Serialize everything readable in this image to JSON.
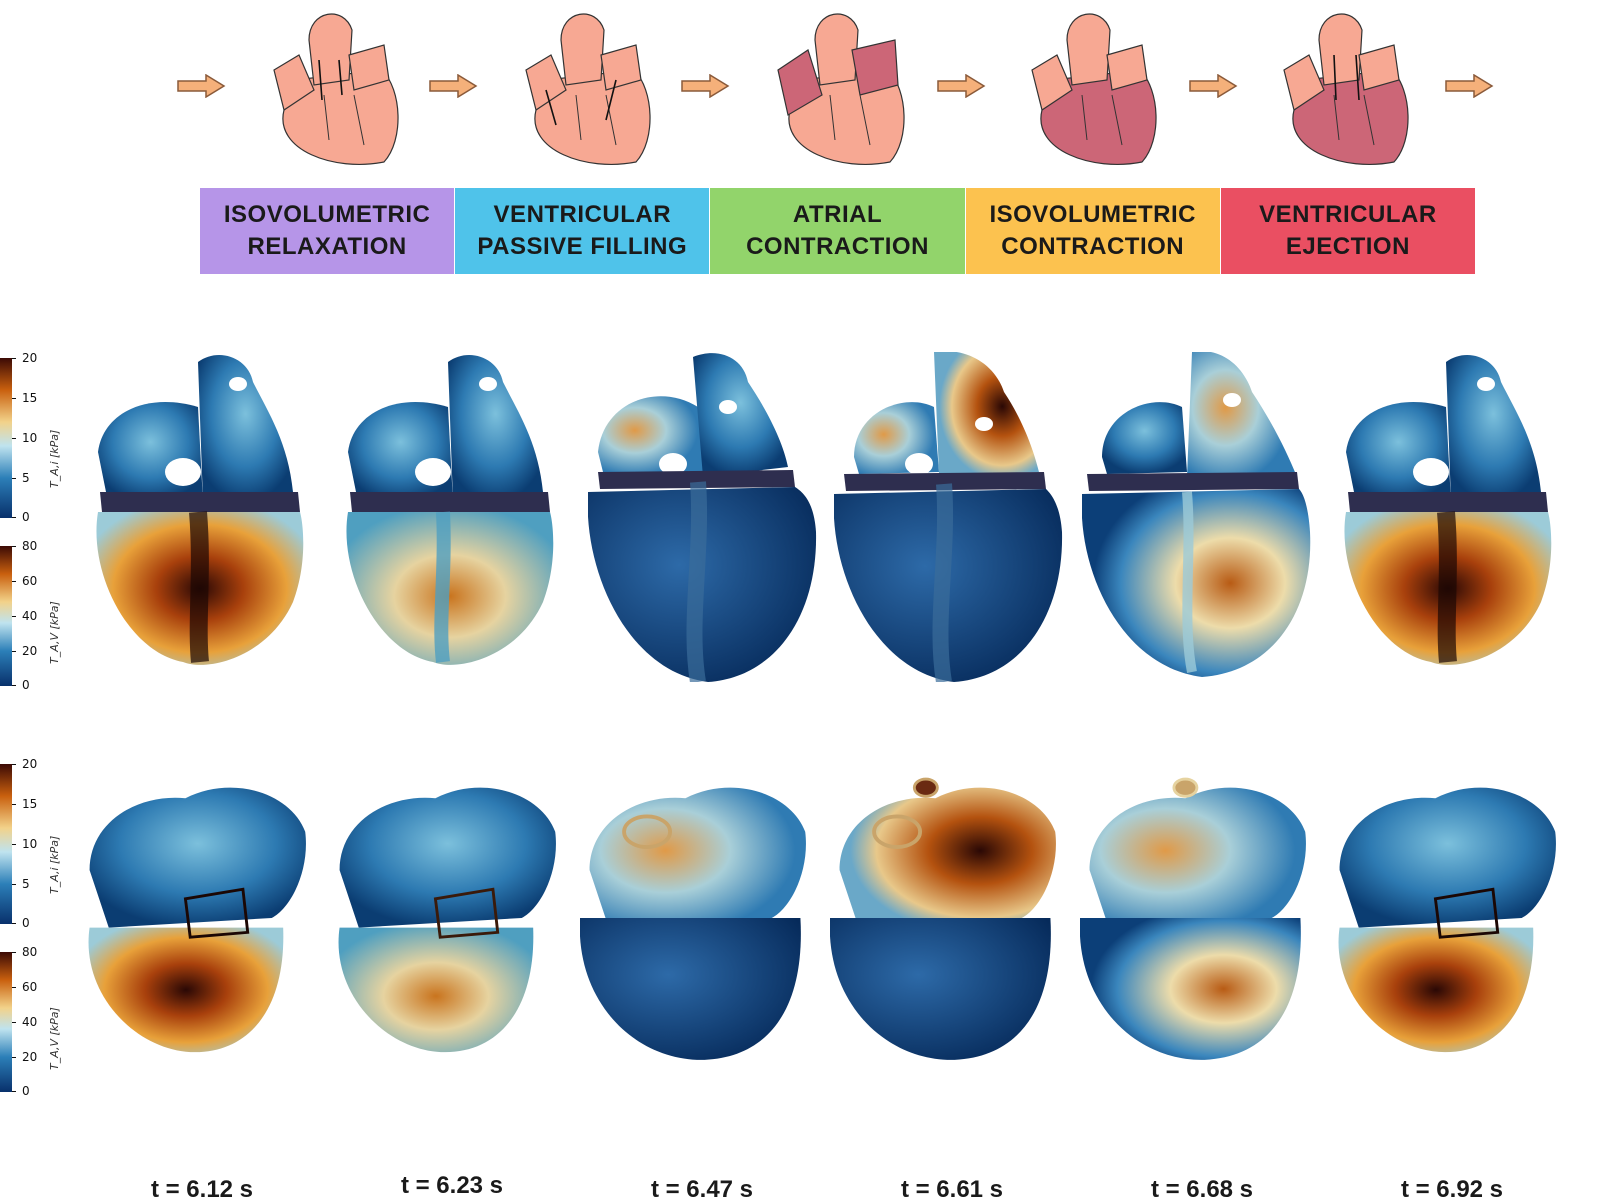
{
  "phases": [
    {
      "line1": "ISOVOLUMETRIC",
      "line2": "RELAXATION",
      "color": "#b695e8"
    },
    {
      "line1": "VENTRICULAR",
      "line2": "PASSIVE FILLING",
      "color": "#4fc3ea"
    },
    {
      "line1": "ATRIAL",
      "line2": "CONTRACTION",
      "color": "#92d46b"
    },
    {
      "line1": "ISOVOLUMETRIC",
      "line2": "CONTRACTION",
      "color": "#fcc24f"
    },
    {
      "line1": "VENTRICULAR",
      "line2": "EJECTION",
      "color": "#ea4f62"
    }
  ],
  "colorbars": {
    "atria": {
      "label": "T_A,i [kPa]",
      "ticks": [
        "20",
        "15",
        "10",
        "5",
        "0"
      ]
    },
    "ventricles": {
      "label": "T_A,V [kPa]",
      "ticks": [
        "80",
        "60",
        "40",
        "20",
        "0"
      ]
    }
  },
  "times": [
    "t = 6.12 s",
    "t = 6.23 s",
    "t = 6.47 s",
    "t = 6.61 s",
    "t = 6.68 s",
    "t = 6.92 s"
  ],
  "colors": {
    "arrow": "#f5b07a",
    "arrow_stroke": "#8a5a3a",
    "heart_light": "#f7a893",
    "heart_dark": "#cc6677"
  }
}
